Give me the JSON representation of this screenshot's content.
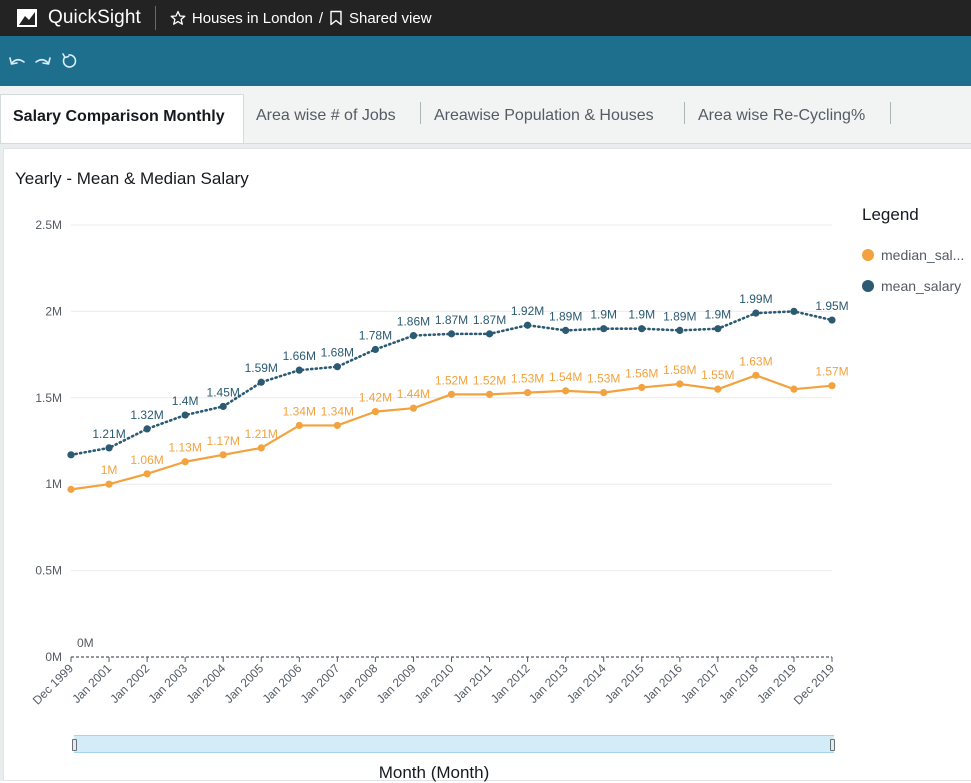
{
  "app": {
    "name": "QuickSight"
  },
  "header": {
    "analysis_title": "Houses in London",
    "view_label": "Shared view"
  },
  "toolbar": {
    "icons": [
      "undo-icon",
      "redo-icon",
      "reset-icon"
    ]
  },
  "tabs": [
    {
      "label": "Salary Comparison Monthly",
      "active": true
    },
    {
      "label": "Area wise # of Jobs",
      "active": false
    },
    {
      "label": "Areawise Population & Houses",
      "active": false
    },
    {
      "label": "Area wise Re-Cycling%",
      "active": false
    }
  ],
  "visual": {
    "title": "Yearly - Mean & Median Salary",
    "legend_title": "Legend",
    "legend": [
      {
        "name": "median_sal...",
        "color": "#f2a23f"
      },
      {
        "name": "mean_salary",
        "color": "#2b5a72"
      }
    ],
    "x_axis_title": "Month (Month)"
  },
  "chart_data": {
    "type": "line",
    "title": "Yearly - Mean & Median Salary",
    "xlabel": "Month (Month)",
    "ylabel": "",
    "ylim": [
      0,
      2500000
    ],
    "y_ticks": [
      {
        "value": 0,
        "label": "0M"
      },
      {
        "value": 500000,
        "label": "0.5M"
      },
      {
        "value": 1000000,
        "label": "1M"
      },
      {
        "value": 1500000,
        "label": "1.5M"
      },
      {
        "value": 2000000,
        "label": "2M"
      },
      {
        "value": 2500000,
        "label": "2.5M"
      }
    ],
    "categories": [
      "Dec 1999",
      "Jan 2001",
      "Jan 2002",
      "Jan 2003",
      "Jan 2004",
      "Jan 2005",
      "Jan 2006",
      "Jan 2007",
      "Jan 2008",
      "Jan 2009",
      "Jan 2010",
      "Jan 2011",
      "Jan 2012",
      "Jan 2013",
      "Jan 2014",
      "Jan 2015",
      "Jan 2016",
      "Jan 2017",
      "Jan 2018",
      "Jan 2019",
      "Dec 2019"
    ],
    "zero_label": "0M",
    "series": [
      {
        "name": "mean_salary",
        "color": "#2b5a72",
        "style": "dotted",
        "values": [
          1170000,
          1210000,
          1320000,
          1400000,
          1450000,
          1590000,
          1660000,
          1680000,
          1780000,
          1860000,
          1870000,
          1870000,
          1920000,
          1890000,
          1900000,
          1900000,
          1890000,
          1900000,
          1990000,
          2000000,
          1950000
        ],
        "labels": [
          "",
          "1.21M",
          "1.32M",
          "1.4M",
          "1.45M",
          "1.59M",
          "1.66M",
          "1.68M",
          "1.78M",
          "1.86M",
          "1.87M",
          "1.87M",
          "1.92M",
          "1.89M",
          "1.9M",
          "1.9M",
          "1.89M",
          "1.9M",
          "1.99M",
          "",
          "1.95M"
        ]
      },
      {
        "name": "median_sal...",
        "color": "#f2a23f",
        "style": "solid",
        "values": [
          970000,
          1000000,
          1060000,
          1130000,
          1170000,
          1210000,
          1340000,
          1340000,
          1420000,
          1440000,
          1520000,
          1520000,
          1530000,
          1540000,
          1530000,
          1560000,
          1580000,
          1550000,
          1630000,
          1550000,
          1570000
        ],
        "labels": [
          "",
          "1M",
          "1.06M",
          "1.13M",
          "1.17M",
          "1.21M",
          "1.34M",
          "1.34M",
          "1.42M",
          "1.44M",
          "1.52M",
          "1.52M",
          "1.53M",
          "1.54M",
          "1.53M",
          "1.56M",
          "1.58M",
          "1.55M",
          "1.63M",
          "",
          "1.57M"
        ]
      }
    ],
    "grid": true,
    "legend_position": "right"
  }
}
